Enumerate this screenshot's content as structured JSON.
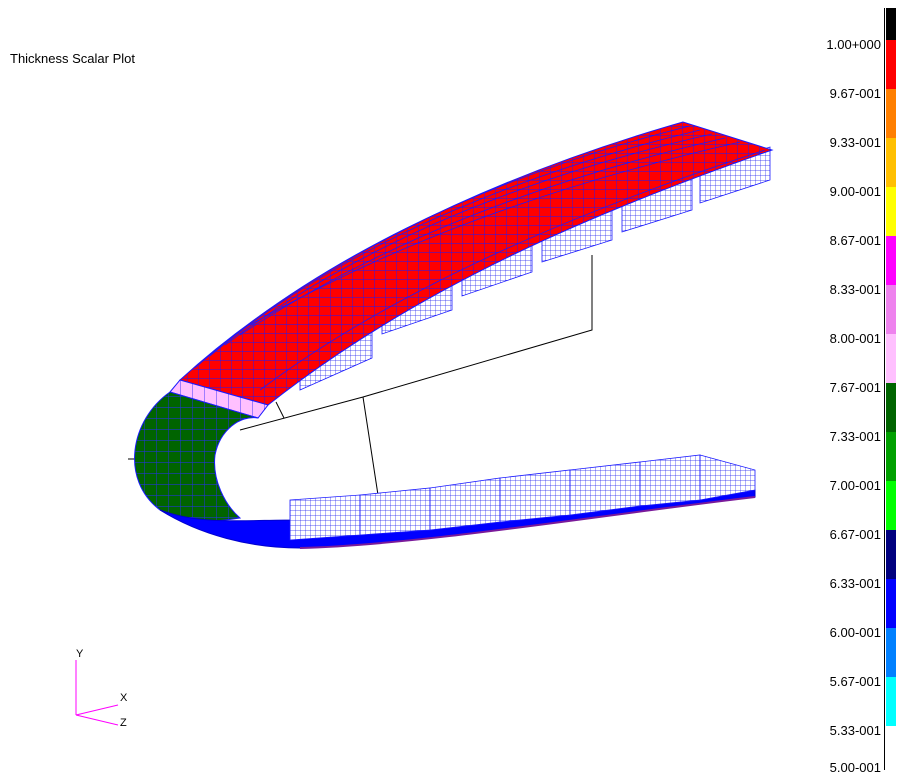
{
  "title": "Thickness Scalar Plot",
  "legend": {
    "labels": [
      "1.00+000",
      "9.67-001",
      "9.33-001",
      "9.00-001",
      "8.67-001",
      "8.33-001",
      "8.00-001",
      "7.67-001",
      "7.33-001",
      "7.00-001",
      "6.67-001",
      "6.33-001",
      "6.00-001",
      "5.67-001",
      "5.33-001",
      "5.00-001"
    ],
    "colors": [
      "#000000",
      "#ff0000",
      "#ff7f00",
      "#ffbf00",
      "#ffff00",
      "#ff00ff",
      "#ee82ee",
      "#ffc0ff",
      "#006400",
      "#00a000",
      "#00ff00",
      "#00007f",
      "#0000ff",
      "#0080ff",
      "#00ffff"
    ]
  },
  "triad": {
    "y_label": "Y",
    "x_label": "X",
    "z_label": "Z"
  },
  "model": {
    "colors": {
      "red_panel": "#ff0000",
      "pink_strip": "#ffc0ff",
      "green_nose": "#006400",
      "mesh_line": "#0000ff",
      "bottom_skin": "#0000ff",
      "frame_line": "#000000",
      "rib_fill": "#ffffff"
    }
  }
}
